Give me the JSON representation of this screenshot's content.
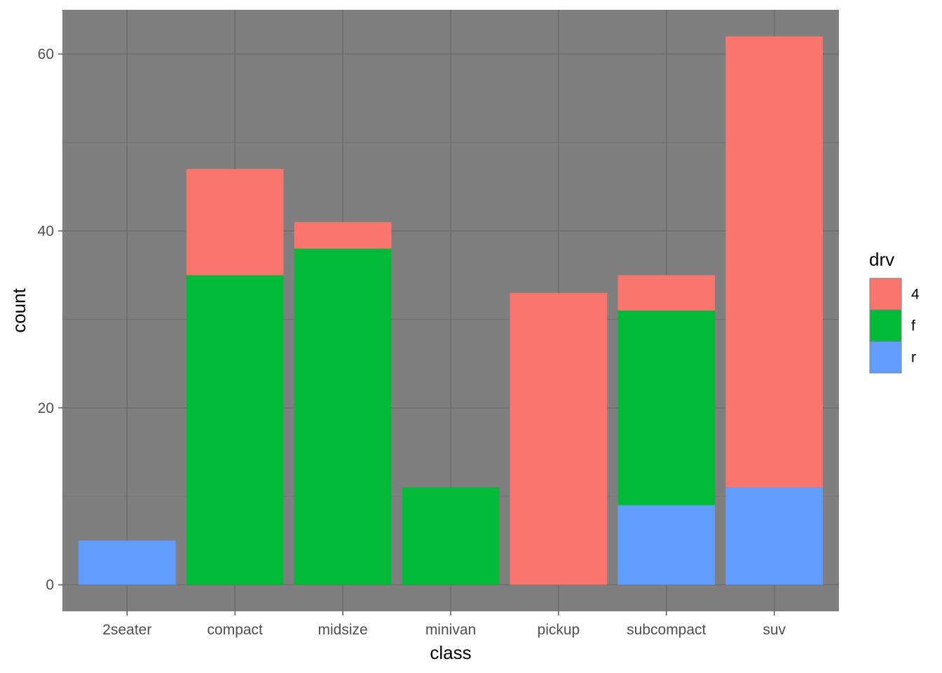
{
  "chart_data": {
    "type": "bar",
    "stacked": true,
    "title": "",
    "xlabel": "class",
    "ylabel": "count",
    "categories": [
      "2seater",
      "compact",
      "midsize",
      "minivan",
      "pickup",
      "subcompact",
      "suv"
    ],
    "series": [
      {
        "name": "4",
        "color": "#F8766D",
        "values": [
          0,
          12,
          3,
          0,
          33,
          4,
          51
        ]
      },
      {
        "name": "f",
        "color": "#00BA38",
        "values": [
          0,
          35,
          38,
          11,
          0,
          22,
          0
        ]
      },
      {
        "name": "r",
        "color": "#619CFF",
        "values": [
          5,
          0,
          0,
          0,
          0,
          9,
          11
        ]
      }
    ],
    "ylim": [
      -3,
      65
    ],
    "y_ticks": [
      0,
      20,
      40,
      60
    ],
    "y_tick_labels": [
      "0",
      "20",
      "40",
      "60"
    ],
    "grid": true,
    "panel_background": "#7F7F7F",
    "grid_color": "#6b6b6b",
    "legend": {
      "title": "drv",
      "placement": "right",
      "entries": [
        "4",
        "f",
        "r"
      ]
    }
  }
}
